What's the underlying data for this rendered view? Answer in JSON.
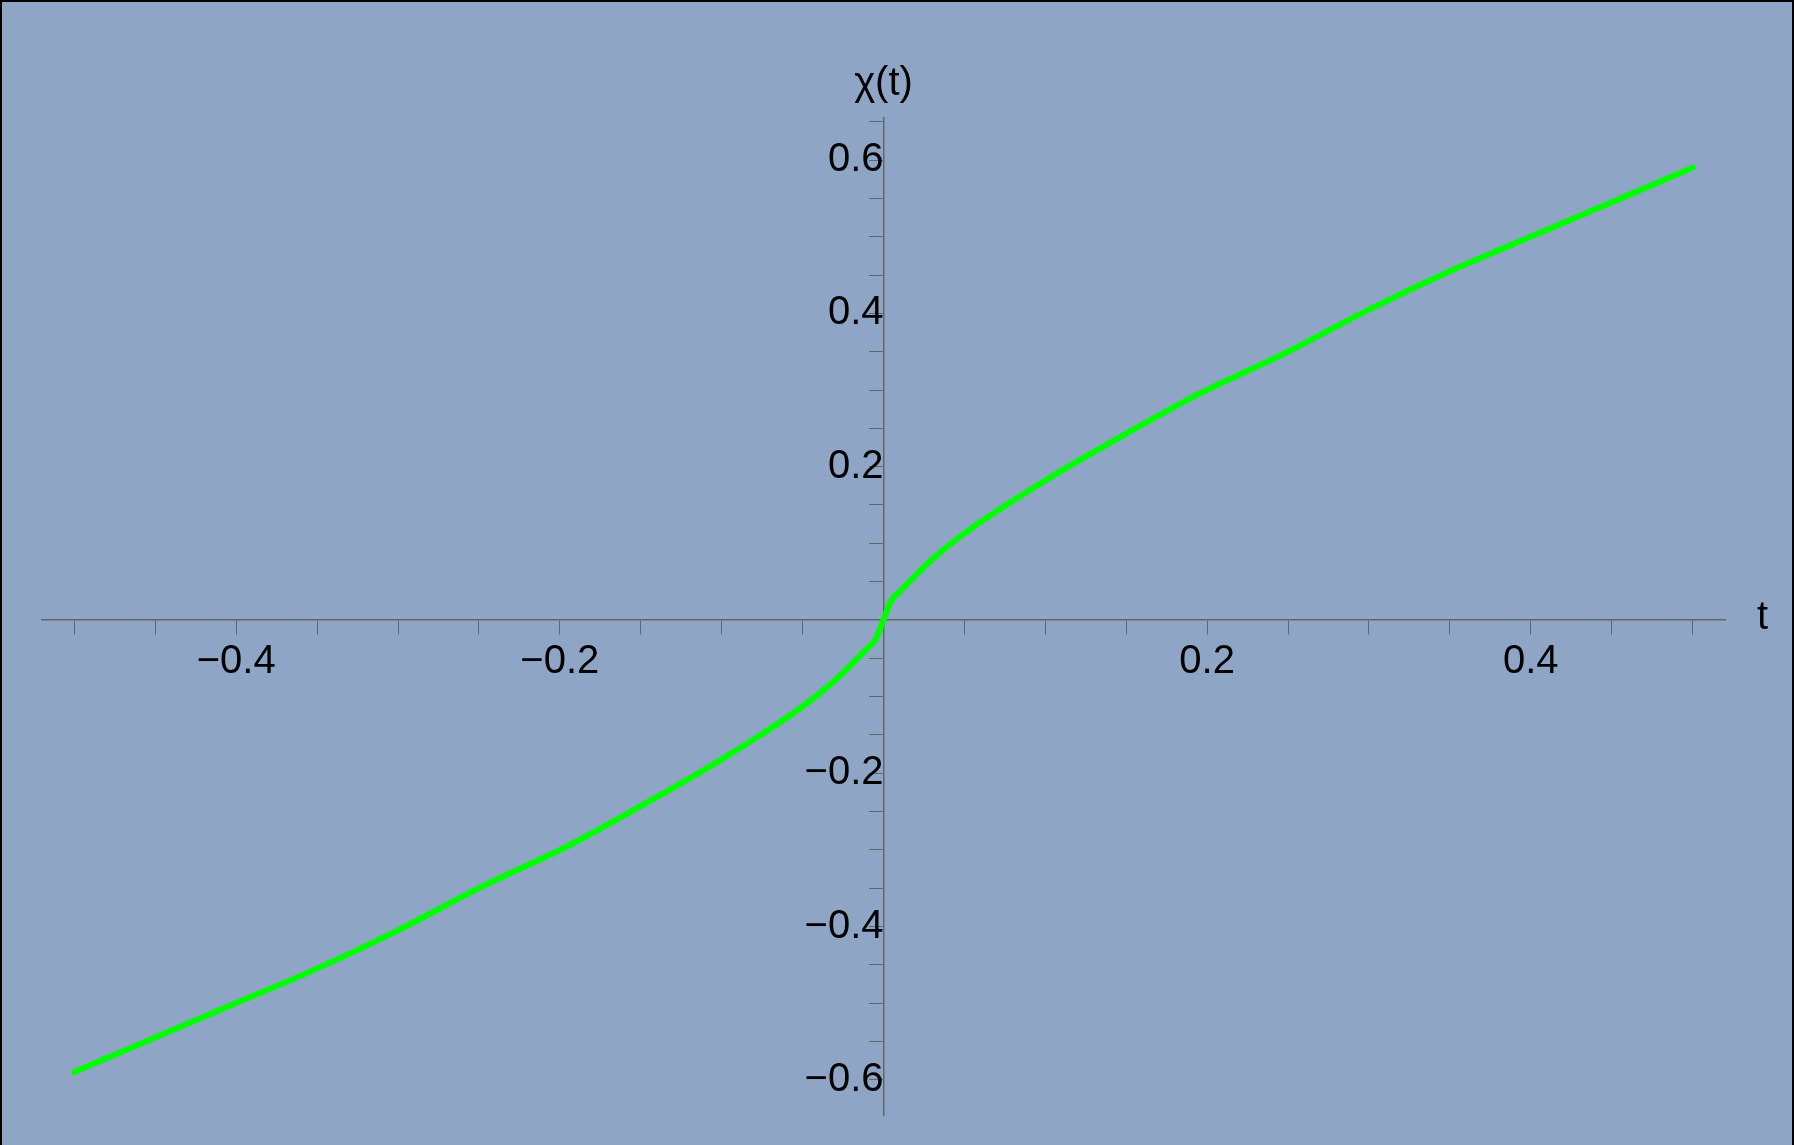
{
  "chart_data": {
    "type": "line",
    "xlabel": "t",
    "ylabel": "χ(t)",
    "x": [
      -0.5,
      -0.45,
      -0.4,
      -0.35,
      -0.3,
      -0.25,
      -0.195,
      -0.15,
      -0.1,
      -0.05,
      -0.03,
      -0.01,
      -0.005,
      0,
      0.005,
      0.01,
      0.03,
      0.05,
      0.1,
      0.15,
      0.195,
      0.25,
      0.3,
      0.35,
      0.4,
      0.45,
      0.5
    ],
    "series": [
      {
        "color": "#00ff00",
        "values": [
          -0.59,
          -0.545,
          -0.5,
          -0.455,
          -0.405,
          -0.35,
          -0.295,
          -0.243,
          -0.182,
          -0.113,
          -0.079,
          -0.037,
          -0.026,
          0,
          0.026,
          0.037,
          0.079,
          0.113,
          0.182,
          0.243,
          0.295,
          0.35,
          0.405,
          0.455,
          0.5,
          0.545,
          0.59
        ]
      }
    ],
    "xlim": [
      -0.52,
      0.52
    ],
    "ylim": [
      -0.646,
      0.655
    ],
    "xticks": [
      {
        "value": -0.5,
        "label": null
      },
      {
        "value": -0.45,
        "label": null
      },
      {
        "value": -0.4,
        "label": "−0.4"
      },
      {
        "value": -0.35,
        "label": null
      },
      {
        "value": -0.3,
        "label": null
      },
      {
        "value": -0.25,
        "label": null
      },
      {
        "value": -0.2,
        "label": "−0.2"
      },
      {
        "value": -0.15,
        "label": null
      },
      {
        "value": -0.1,
        "label": null
      },
      {
        "value": -0.05,
        "label": null
      },
      {
        "value": 0.05,
        "label": null
      },
      {
        "value": 0.1,
        "label": null
      },
      {
        "value": 0.15,
        "label": null
      },
      {
        "value": 0.2,
        "label": "0.2"
      },
      {
        "value": 0.25,
        "label": null
      },
      {
        "value": 0.3,
        "label": null
      },
      {
        "value": 0.35,
        "label": null
      },
      {
        "value": 0.4,
        "label": "0.4"
      },
      {
        "value": 0.45,
        "label": null
      },
      {
        "value": 0.5,
        "label": null
      }
    ],
    "yticks": [
      {
        "value": -0.6,
        "label": "−0.6"
      },
      {
        "value": -0.55,
        "label": null
      },
      {
        "value": -0.5,
        "label": null
      },
      {
        "value": -0.45,
        "label": null
      },
      {
        "value": -0.4,
        "label": "−0.4"
      },
      {
        "value": -0.35,
        "label": null
      },
      {
        "value": -0.3,
        "label": null
      },
      {
        "value": -0.25,
        "label": null
      },
      {
        "value": -0.2,
        "label": "−0.2"
      },
      {
        "value": -0.15,
        "label": null
      },
      {
        "value": -0.1,
        "label": null
      },
      {
        "value": -0.05,
        "label": null
      },
      {
        "value": 0.05,
        "label": null
      },
      {
        "value": 0.1,
        "label": null
      },
      {
        "value": 0.15,
        "label": null
      },
      {
        "value": 0.2,
        "label": "0.2"
      },
      {
        "value": 0.25,
        "label": null
      },
      {
        "value": 0.3,
        "label": null
      },
      {
        "value": 0.35,
        "label": null
      },
      {
        "value": 0.4,
        "label": "0.4"
      },
      {
        "value": 0.45,
        "label": null
      },
      {
        "value": 0.5,
        "label": null
      },
      {
        "value": 0.55,
        "label": null
      },
      {
        "value": 0.6,
        "label": "0.6"
      },
      {
        "value": 0.65,
        "label": null
      }
    ],
    "grid": false,
    "legend": false,
    "marker": "none",
    "line_style": "solid"
  }
}
